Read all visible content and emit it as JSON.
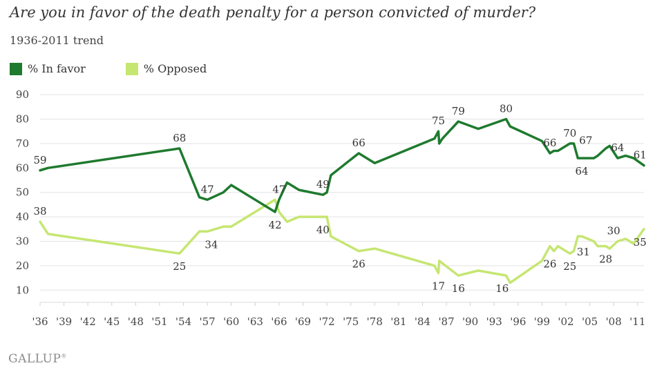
{
  "title": "Are you in favor of the death penalty for a person convicted of murder?",
  "subtitle": "1936-2011 trend",
  "logo": "GALLUP",
  "chart_data": {
    "type": "line",
    "xlim": [
      1936,
      2011.8
    ],
    "ylim": [
      5,
      92
    ],
    "y_ticks": [
      10,
      20,
      30,
      40,
      50,
      60,
      70,
      80,
      90
    ],
    "x_ticks": [
      1936,
      1939,
      1942,
      1945,
      1948,
      1951,
      1954,
      1957,
      1960,
      1963,
      1966,
      1969,
      1972,
      1975,
      1978,
      1981,
      1984,
      1987,
      1990,
      1993,
      1996,
      1999,
      2002,
      2005,
      2008,
      2011
    ],
    "x_tick_labels": [
      "'36",
      "'39",
      "'42",
      "'45",
      "'48",
      "'51",
      "'54",
      "'57",
      "'60",
      "'63",
      "'66",
      "'69",
      "'72",
      "'75",
      "'78",
      "'81",
      "'84",
      "'87",
      "'90",
      "'93",
      "'96",
      "'99",
      "'02",
      "'05",
      "'08",
      "'11"
    ],
    "grid": "horizontal",
    "legend_position": "top-left",
    "series": [
      {
        "name": "% In favor",
        "color": "#1e7a2e",
        "x": [
          1936.0,
          1937.0,
          1953.5,
          1956.0,
          1957.0,
          1959.0,
          1960.0,
          1965.5,
          1966.0,
          1967.0,
          1968.5,
          1971.5,
          1972.0,
          1972.5,
          1976.0,
          1978.0,
          1985.5,
          1986.0,
          1986.1,
          1986.5,
          1988.5,
          1991.0,
          1994.5,
          1995.0,
          1999.0,
          2000.0,
          2000.5,
          2001.0,
          2002.5,
          2003.0,
          2003.5,
          2004.0,
          2005.5,
          2006.0,
          2007.0,
          2007.5,
          2008.5,
          2009.5,
          2010.5,
          2011.8
        ],
        "values": [
          59,
          60,
          68,
          48,
          47,
          50,
          53,
          42,
          47,
          54,
          51,
          49,
          50,
          57,
          66,
          62,
          72,
          75,
          70,
          72,
          79,
          76,
          80,
          77,
          71,
          66,
          67,
          67,
          70,
          70,
          64,
          64,
          64,
          65,
          68,
          69,
          64,
          65,
          64,
          61
        ]
      },
      {
        "name": "% Opposed",
        "color": "#c6e672",
        "x": [
          1936.0,
          1937.0,
          1953.5,
          1956.0,
          1957.0,
          1959.0,
          1960.0,
          1965.5,
          1966.0,
          1967.0,
          1968.5,
          1971.5,
          1972.0,
          1972.5,
          1976.0,
          1978.0,
          1985.5,
          1986.0,
          1986.1,
          1986.5,
          1988.5,
          1991.0,
          1994.5,
          1995.0,
          1999.0,
          2000.0,
          2000.5,
          2001.0,
          2002.5,
          2003.0,
          2003.5,
          2004.0,
          2005.5,
          2006.0,
          2007.0,
          2007.5,
          2008.5,
          2009.5,
          2010.5,
          2011.8
        ],
        "values": [
          38,
          33,
          25,
          34,
          34,
          36,
          36,
          47,
          42,
          38,
          40,
          40,
          40,
          32,
          26,
          27,
          20,
          17,
          22,
          21,
          16,
          18,
          16,
          13,
          22,
          28,
          26,
          28,
          25,
          26,
          32,
          32,
          30,
          28,
          28,
          27,
          30,
          31,
          29,
          35
        ]
      }
    ],
    "data_labels": [
      {
        "series": 0,
        "x": 1936.0,
        "value": 59,
        "text": "59",
        "pos": "above"
      },
      {
        "series": 0,
        "x": 1953.5,
        "value": 68,
        "text": "68",
        "pos": "above"
      },
      {
        "series": 0,
        "x": 1957.0,
        "value": 47,
        "text": "47",
        "pos": "above"
      },
      {
        "series": 0,
        "x": 1965.5,
        "value": 42,
        "text": "42",
        "pos": "below"
      },
      {
        "series": 0,
        "x": 1971.5,
        "value": 49,
        "text": "49",
        "pos": "above"
      },
      {
        "series": 0,
        "x": 1976.0,
        "value": 66,
        "text": "66",
        "pos": "above"
      },
      {
        "series": 0,
        "x": 1986.0,
        "value": 75,
        "text": "75",
        "pos": "above"
      },
      {
        "series": 0,
        "x": 1988.5,
        "value": 79,
        "text": "79",
        "pos": "above"
      },
      {
        "series": 0,
        "x": 1994.5,
        "value": 80,
        "text": "80",
        "pos": "above"
      },
      {
        "series": 0,
        "x": 2000.0,
        "value": 66,
        "text": "66",
        "pos": "above"
      },
      {
        "series": 0,
        "x": 2002.5,
        "value": 70,
        "text": "70",
        "pos": "above"
      },
      {
        "series": 0,
        "x": 2004.5,
        "value": 67,
        "text": "67",
        "pos": "above"
      },
      {
        "series": 0,
        "x": 2004.0,
        "value": 64,
        "text": "64",
        "pos": "below"
      },
      {
        "series": 0,
        "x": 2008.5,
        "value": 64,
        "text": "64",
        "pos": "above"
      },
      {
        "series": 0,
        "x": 2011.3,
        "value": 61,
        "text": "61",
        "pos": "above"
      },
      {
        "series": 1,
        "x": 1966.0,
        "value": 47,
        "text": "47",
        "pos": "above"
      },
      {
        "series": 1,
        "x": 1936.0,
        "value": 38,
        "text": "38",
        "pos": "above"
      },
      {
        "series": 1,
        "x": 1953.5,
        "value": 25,
        "text": "25",
        "pos": "below"
      },
      {
        "series": 1,
        "x": 1957.5,
        "value": 34,
        "text": "34",
        "pos": "below"
      },
      {
        "series": 1,
        "x": 1971.5,
        "value": 40,
        "text": "40",
        "pos": "below"
      },
      {
        "series": 1,
        "x": 1976.0,
        "value": 26,
        "text": "26",
        "pos": "below"
      },
      {
        "series": 1,
        "x": 1986.0,
        "value": 17,
        "text": "17",
        "pos": "below"
      },
      {
        "series": 1,
        "x": 1988.5,
        "value": 16,
        "text": "16",
        "pos": "below"
      },
      {
        "series": 1,
        "x": 1994.0,
        "value": 16,
        "text": "16",
        "pos": "below"
      },
      {
        "series": 1,
        "x": 2000.0,
        "value": 26,
        "text": "26",
        "pos": "below"
      },
      {
        "series": 1,
        "x": 2002.5,
        "value": 25,
        "text": "25",
        "pos": "below"
      },
      {
        "series": 1,
        "x": 2004.2,
        "value": 31,
        "text": "31",
        "pos": "below"
      },
      {
        "series": 1,
        "x": 2007.0,
        "value": 28,
        "text": "28",
        "pos": "below"
      },
      {
        "series": 1,
        "x": 2008.0,
        "value": 30,
        "text": "30",
        "pos": "above"
      },
      {
        "series": 1,
        "x": 2011.3,
        "value": 35,
        "text": "35",
        "pos": "below"
      }
    ]
  }
}
